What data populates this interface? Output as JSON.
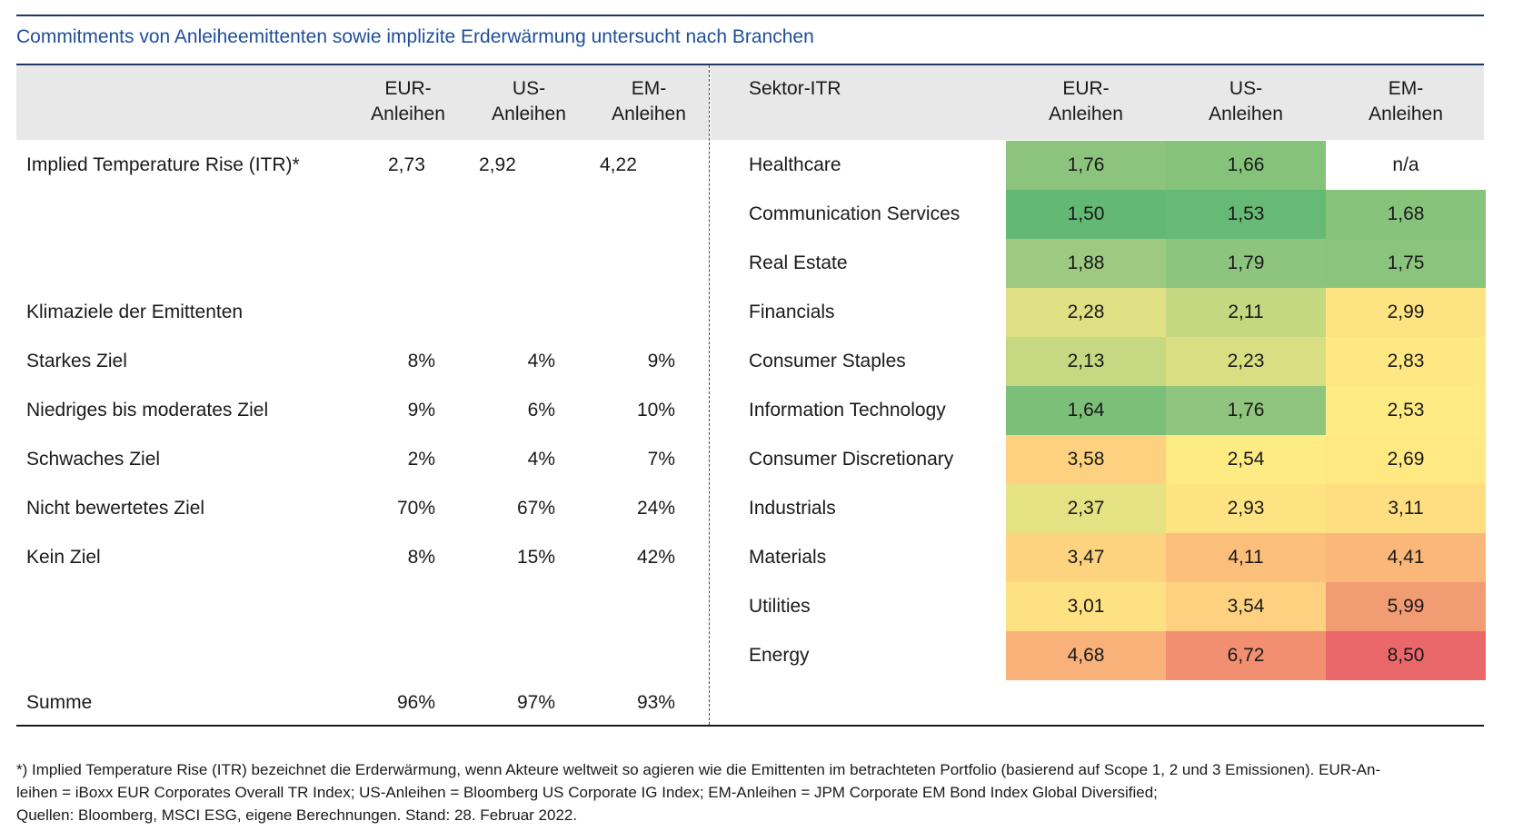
{
  "title": "Commitments von Anleiheemittenten sowie implizite Erderwärmung untersucht nach Branchen",
  "left_table": {
    "headers": [
      {
        "line1": "EUR-",
        "line2": "Anleihen"
      },
      {
        "line1": "US-",
        "line2": "Anleihen"
      },
      {
        "line1": "EM-",
        "line2": "Anleihen"
      }
    ],
    "itr_row": {
      "label": "Implied Temperature Rise (ITR)*",
      "values": [
        "2,73",
        "2,92",
        "4,22"
      ]
    },
    "section_label": "Klimaziele der Emittenten",
    "rows": [
      {
        "label": "Starkes Ziel",
        "values": [
          "8%",
          "4%",
          "9%"
        ]
      },
      {
        "label": "Niedriges bis moderates Ziel",
        "values": [
          "9%",
          "6%",
          "10%"
        ]
      },
      {
        "label": "Schwaches Ziel",
        "values": [
          "2%",
          "4%",
          "7%"
        ]
      },
      {
        "label": "Nicht bewertetes Ziel",
        "values": [
          "70%",
          "67%",
          "24%"
        ]
      },
      {
        "label": "Kein Ziel",
        "values": [
          "8%",
          "15%",
          "42%"
        ]
      }
    ],
    "sum_row": {
      "label": "Summe",
      "values": [
        "96%",
        "97%",
        "93%"
      ]
    }
  },
  "chart_data": {
    "type": "heatmap",
    "row_header": "Sektor-ITR",
    "columns": [
      {
        "line1": "EUR-",
        "line2": "Anleihen"
      },
      {
        "line1": "US-",
        "line2": "Anleihen"
      },
      {
        "line1": "EM-",
        "line2": "Anleihen"
      }
    ],
    "rows": [
      {
        "sector": "Healthcare",
        "values": [
          "1,76",
          "1,66",
          "n/a"
        ],
        "colors": [
          "#8cc47d",
          "#85c27a",
          "#ffffff"
        ]
      },
      {
        "sector": "Communication Services",
        "values": [
          "1,50",
          "1,53",
          "1,68"
        ],
        "colors": [
          "#63b974",
          "#67ba75",
          "#87c37b"
        ]
      },
      {
        "sector": "Real Estate",
        "values": [
          "1,88",
          "1,79",
          "1,75"
        ],
        "colors": [
          "#9ec980",
          "#8ec57e",
          "#8bc47d"
        ]
      },
      {
        "sector": "Financials",
        "values": [
          "2,28",
          "2,11",
          "2,99"
        ],
        "colors": [
          "#dfe083",
          "#c4d882",
          "#fee382"
        ]
      },
      {
        "sector": "Consumer Staples",
        "values": [
          "2,13",
          "2,23",
          "2,83"
        ],
        "colors": [
          "#c6d881",
          "#d9de83",
          "#fee883"
        ]
      },
      {
        "sector": "Information Technology",
        "values": [
          "1,64",
          "1,76",
          "2,53"
        ],
        "colors": [
          "#7bbf79",
          "#8fc57e",
          "#feeb84"
        ]
      },
      {
        "sector": "Consumer Discretionary",
        "values": [
          "3,58",
          "2,54",
          "2,69"
        ],
        "colors": [
          "#fdd17f",
          "#feeb84",
          "#fee983"
        ]
      },
      {
        "sector": "Industrials",
        "values": [
          "2,37",
          "2,93",
          "3,11"
        ],
        "colors": [
          "#e4e283",
          "#fee382",
          "#fede81"
        ]
      },
      {
        "sector": "Materials",
        "values": [
          "3,47",
          "4,11",
          "4,41"
        ],
        "colors": [
          "#fdd37f",
          "#fbbe7b",
          "#fbb77a"
        ]
      },
      {
        "sector": "Utilities",
        "values": [
          "3,01",
          "3,54",
          "5,99"
        ],
        "colors": [
          "#fee182",
          "#fdd17f",
          "#f29c73"
        ]
      },
      {
        "sector": "Energy",
        "values": [
          "4,68",
          "6,72",
          "8,50"
        ],
        "colors": [
          "#f8b279",
          "#f18f70",
          "#ea676a"
        ]
      }
    ]
  },
  "footnote": {
    "line1": "*) Implied Temperature Rise (ITR) bezeichnet die Erderwärmung, wenn Akteure weltweit so agieren wie die Emittenten im betrachteten Portfolio (basierend auf Scope 1, 2 und 3 Emissionen). EUR-An-",
    "line2": "leihen = iBoxx EUR Corporates Overall TR Index; US-Anleihen = Bloomberg US Corporate IG Index; EM-Anleihen = JPM Corporate EM Bond Index Global Diversified;",
    "line3": "Quellen: Bloomberg, MSCI ESG, eigene Berechnungen. Stand: 28. Februar 2022."
  }
}
